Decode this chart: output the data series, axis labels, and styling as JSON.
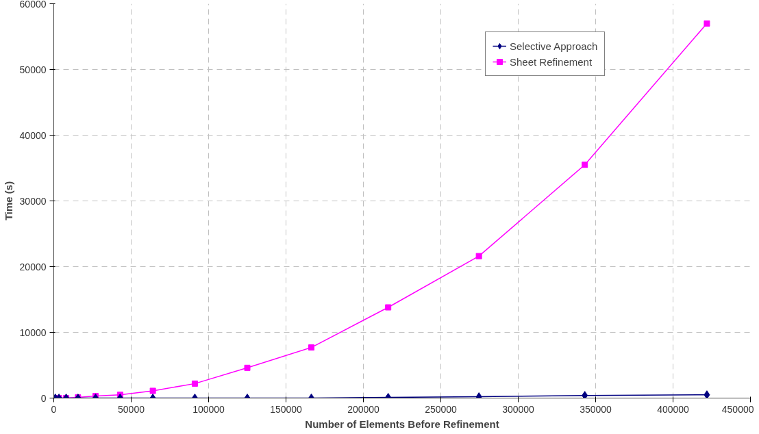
{
  "chart_data": {
    "type": "line",
    "xlabel": "Number of Elements Before Refinement",
    "ylabel": "Time (s)",
    "x": [
      1000,
      3375,
      8000,
      15625,
      27000,
      42875,
      64000,
      91125,
      125000,
      166375,
      216000,
      274625,
      343000,
      421875
    ],
    "series": [
      {
        "name": "Selective Approach",
        "color": "#000080",
        "marker": "diamond",
        "values": [
          0,
          0,
          0,
          0,
          0,
          0,
          0,
          0,
          0,
          0,
          100,
          200,
          400,
          500
        ]
      },
      {
        "name": "Sheet Refinement",
        "color": "#ff00ff",
        "marker": "square",
        "values": [
          0,
          0,
          0,
          100,
          300,
          500,
          1100,
          2200,
          4600,
          7700,
          13800,
          21600,
          35500,
          57000
        ]
      }
    ],
    "xlim": [
      0,
      450000
    ],
    "xticks": [
      0,
      50000,
      100000,
      150000,
      200000,
      250000,
      300000,
      350000,
      400000,
      450000
    ],
    "ylim": [
      0,
      60000
    ],
    "yticks": [
      0,
      10000,
      20000,
      30000,
      40000,
      50000,
      60000
    ],
    "grid": true,
    "legend": "top right",
    "line_style": "solid"
  }
}
